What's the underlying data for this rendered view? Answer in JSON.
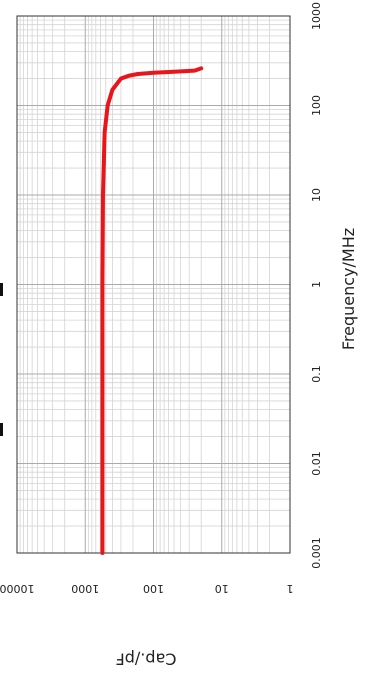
{
  "chart_data": {
    "type": "line",
    "orientation": "rotated-90-clockwise",
    "xlabel": "Frequency/MHz",
    "ylabel": "Cap./pF",
    "xscale": "log",
    "yscale": "log",
    "xlim": [
      0.001,
      1000
    ],
    "ylim": [
      1,
      10000
    ],
    "x_tick_labels": [
      "0.001",
      "0.01",
      "0.1",
      "1",
      "10",
      "100",
      "1000"
    ],
    "y_tick_labels": [
      "1",
      "10",
      "100",
      "1000",
      "10000"
    ],
    "grid": true,
    "legend": "none",
    "series": [
      {
        "color": "#e8161b",
        "x": [
          0.001,
          0.01,
          0.1,
          1,
          10,
          50,
          100,
          150,
          200,
          215,
          225,
          232,
          238,
          245,
          260
        ],
        "y": [
          560,
          560,
          560,
          560,
          550,
          520,
          470,
          400,
          300,
          230,
          170,
          100,
          50,
          25,
          20
        ]
      }
    ]
  }
}
